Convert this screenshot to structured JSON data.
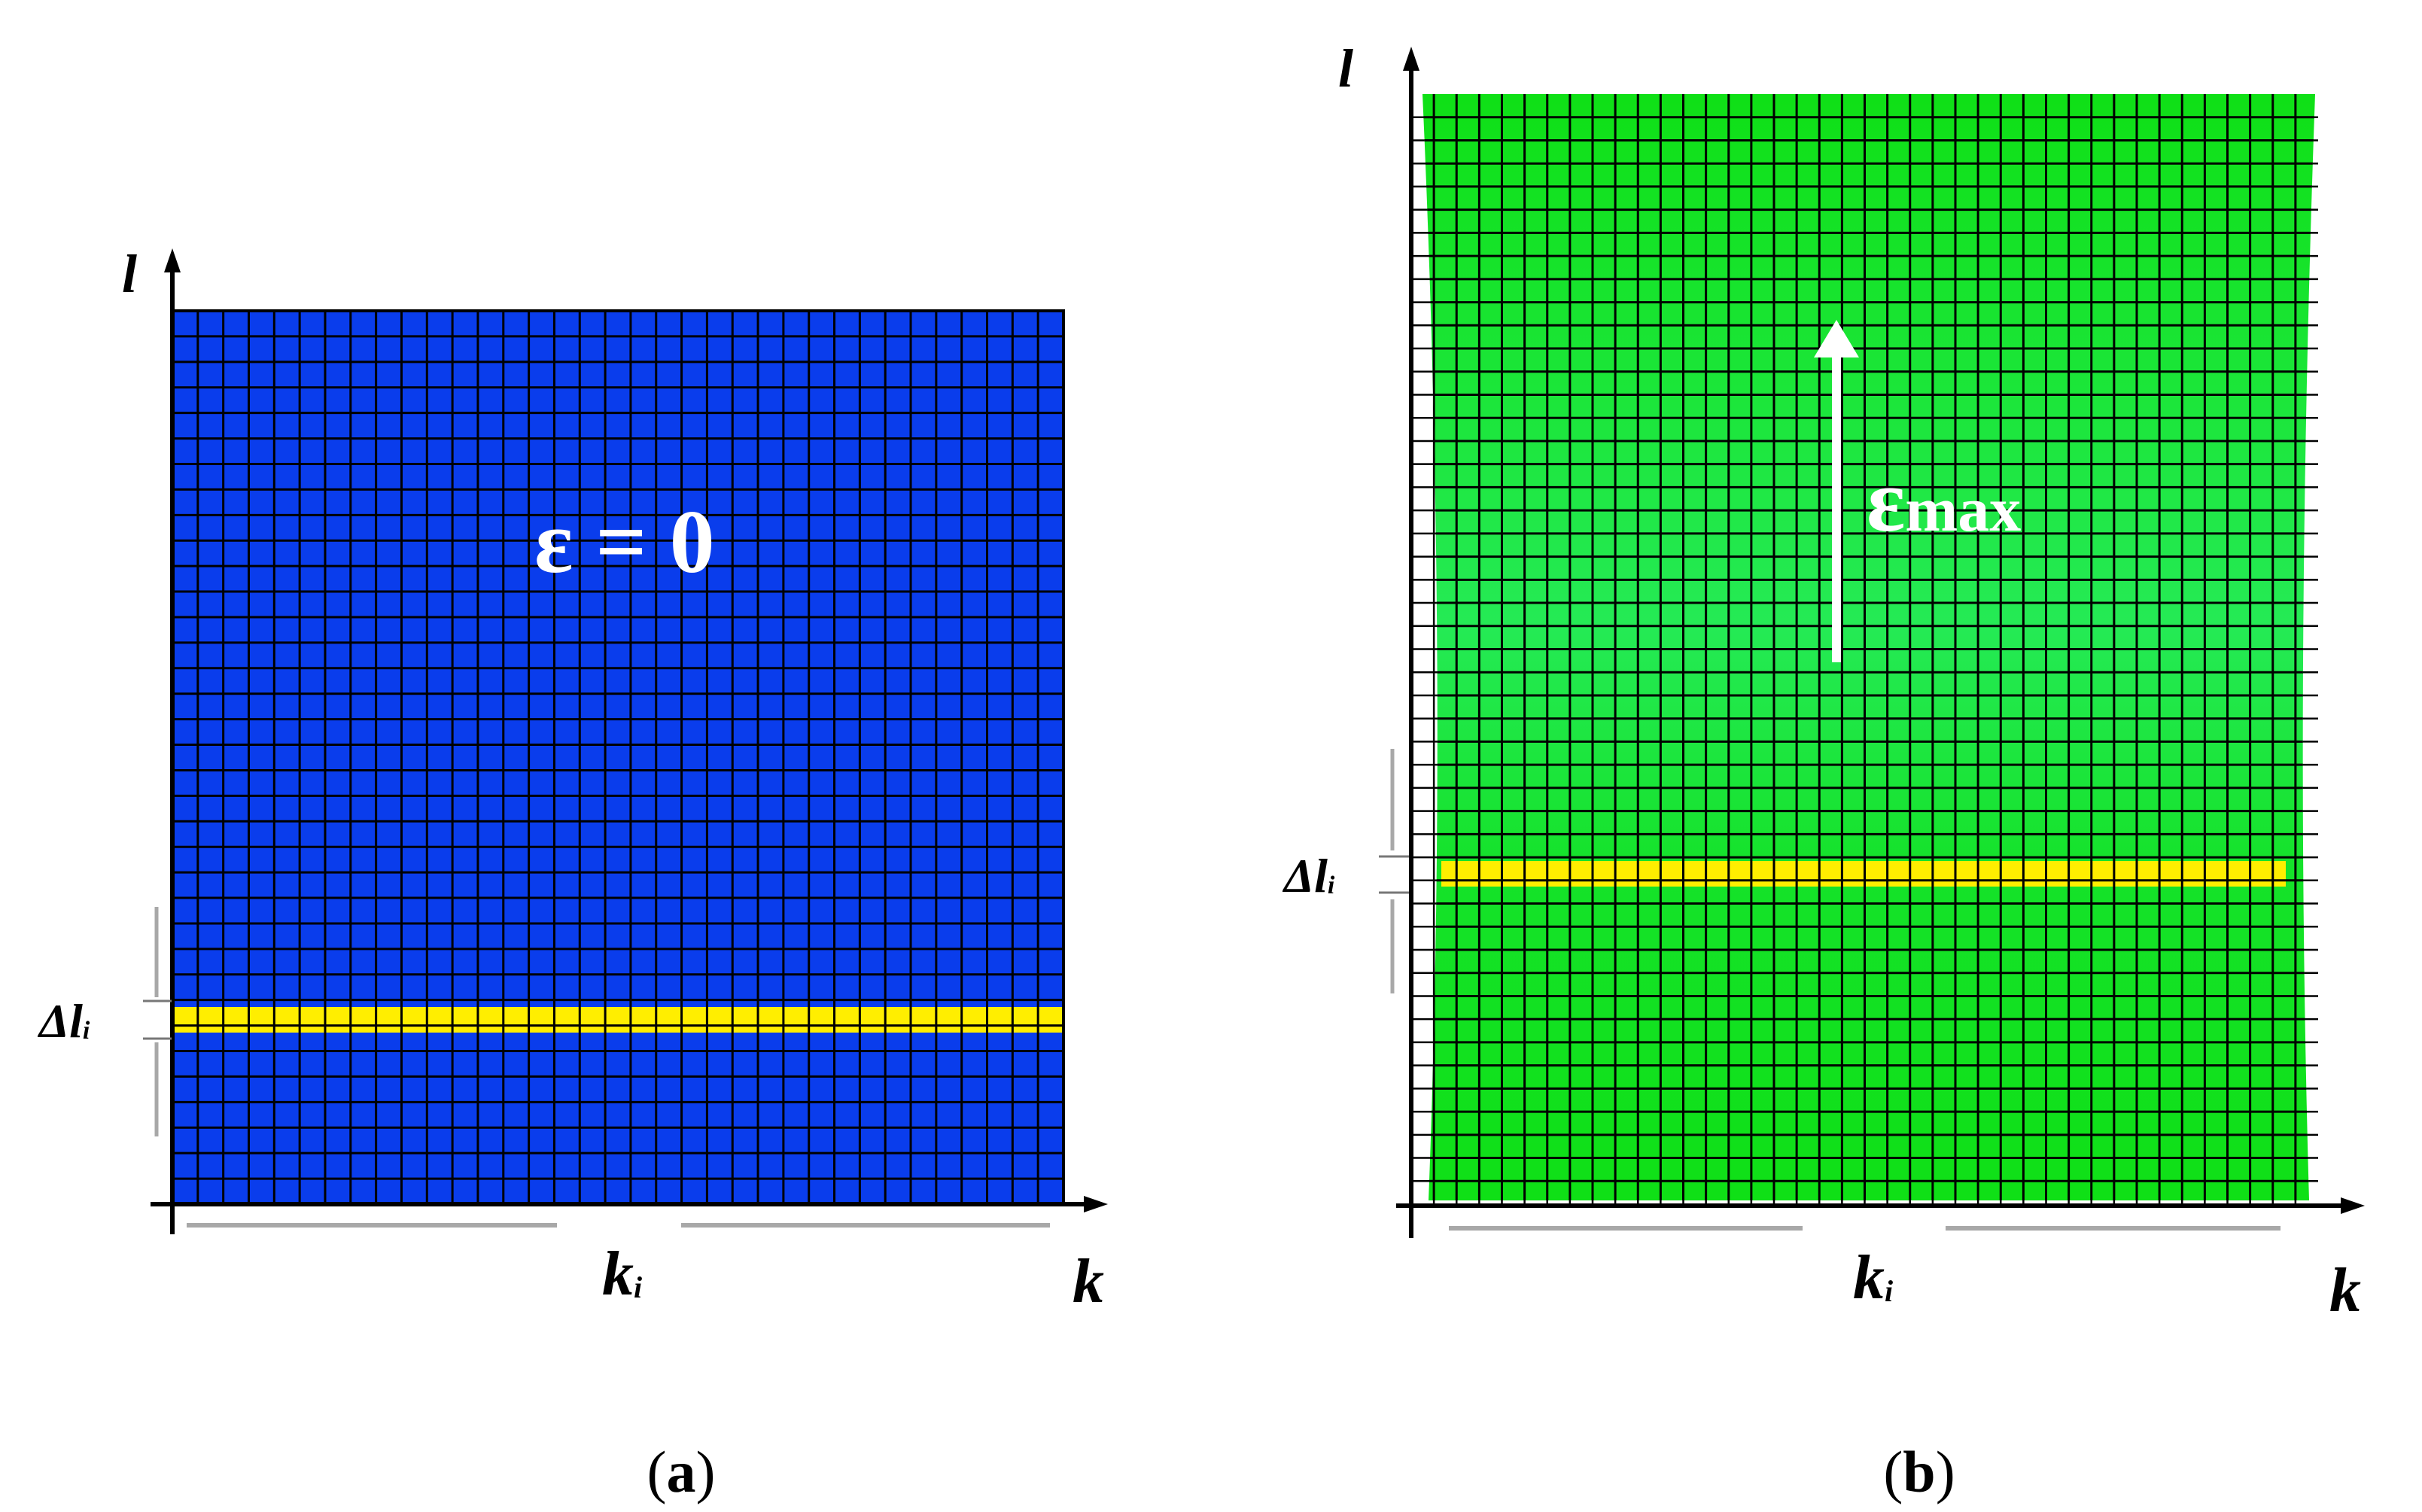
{
  "panel_a": {
    "y_axis_label": "l",
    "x_axis_label": "k",
    "x_bracket_label": "k",
    "x_bracket_sub": "i",
    "y_bracket_label": "Δl",
    "y_bracket_sub": "i",
    "strain_symbol": "ε",
    "strain_eq": "=",
    "strain_value": "0",
    "caption_open": "(",
    "caption_letter": "a",
    "caption_close": ")",
    "fill_color": "#0a3dec",
    "stripe_color": "#ffee00",
    "grid_color": "#000000"
  },
  "panel_b": {
    "y_axis_label": "l",
    "x_axis_label": "k",
    "x_bracket_label": "k",
    "x_bracket_sub": "i",
    "y_bracket_label": "Δl",
    "y_bracket_sub": "i",
    "strain_symbol": "ε",
    "strain_sub": "max",
    "caption_open": "(",
    "caption_letter": "b",
    "caption_close": ")",
    "fill_color": "#11e21a",
    "fill_color_mid": "#24ec5a",
    "stripe_color": "#ffee00",
    "grid_color": "#000000"
  }
}
